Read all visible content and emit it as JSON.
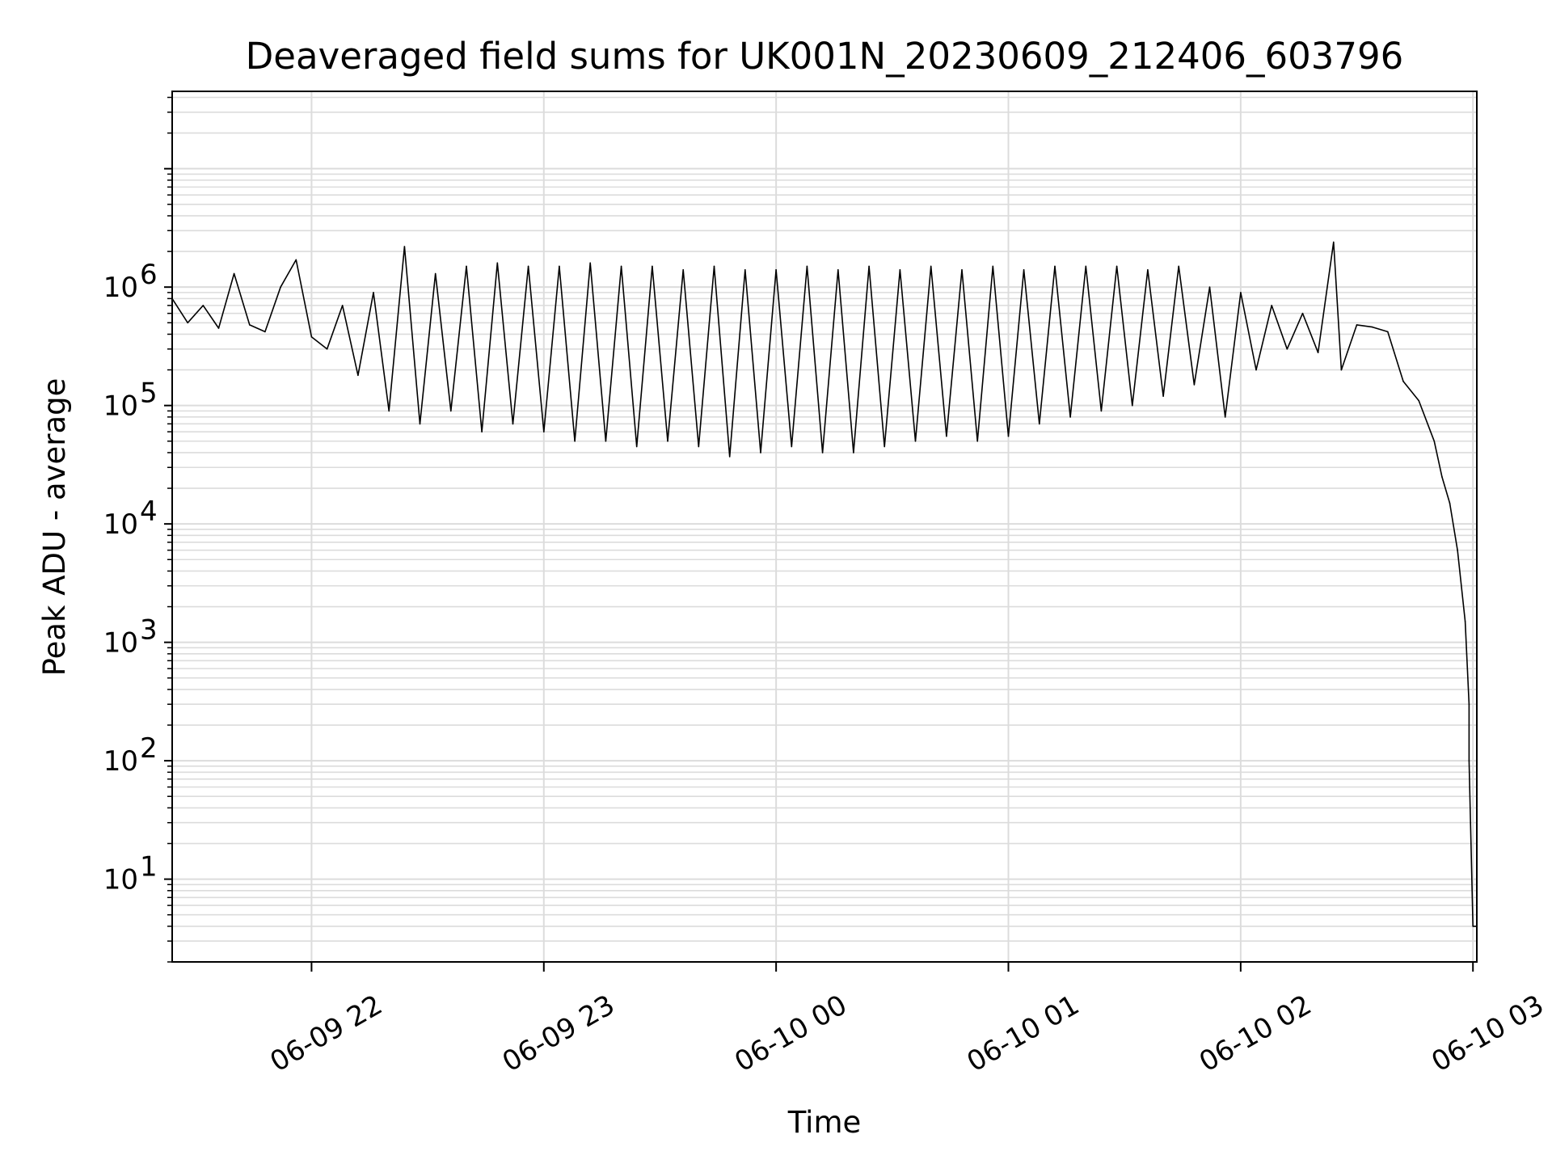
{
  "chart_data": {
    "type": "line",
    "title": "Deaveraged field sums for UK001N_20230609_212406_603796",
    "xlabel": "Time",
    "ylabel": "Peak ADU - average",
    "yscale": "log",
    "ylim": [
      2,
      45000000
    ],
    "xlim": [
      "2023-06-09 21:24",
      "2023-06-10 03:01"
    ],
    "grid": true,
    "x_ticks": [
      {
        "time": "2023-06-09 22:00",
        "label": "06-09 22"
      },
      {
        "time": "2023-06-09 23:00",
        "label": "06-09 23"
      },
      {
        "time": "2023-06-10 00:00",
        "label": "06-10 00"
      },
      {
        "time": "2023-06-10 01:00",
        "label": "06-10 01"
      },
      {
        "time": "2023-06-10 02:00",
        "label": "06-10 02"
      },
      {
        "time": "2023-06-10 03:00",
        "label": "06-10 03"
      }
    ],
    "y_ticks": [
      {
        "value": 10,
        "base": "10",
        "exp": "1"
      },
      {
        "value": 100,
        "base": "10",
        "exp": "2"
      },
      {
        "value": 1000,
        "base": "10",
        "exp": "3"
      },
      {
        "value": 10000,
        "base": "10",
        "exp": "4"
      },
      {
        "value": 100000,
        "base": "10",
        "exp": "5"
      },
      {
        "value": 1000000,
        "base": "10",
        "exp": "6"
      }
    ],
    "series": [
      {
        "color": "#000000",
        "points": [
          [
            "2023-06-09 21:24",
            800000
          ],
          [
            "2023-06-09 21:28",
            500000
          ],
          [
            "2023-06-09 21:32",
            700000
          ],
          [
            "2023-06-09 21:36",
            450000
          ],
          [
            "2023-06-09 21:40",
            1300000
          ],
          [
            "2023-06-09 21:44",
            480000
          ],
          [
            "2023-06-09 21:48",
            420000
          ],
          [
            "2023-06-09 21:52",
            1000000
          ],
          [
            "2023-06-09 21:56",
            1700000
          ],
          [
            "2023-06-09 22:00",
            380000
          ],
          [
            "2023-06-09 22:04",
            300000
          ],
          [
            "2023-06-09 22:08",
            700000
          ],
          [
            "2023-06-09 22:12",
            180000
          ],
          [
            "2023-06-09 22:16",
            900000
          ],
          [
            "2023-06-09 22:20",
            90000
          ],
          [
            "2023-06-09 22:24",
            2200000
          ],
          [
            "2023-06-09 22:28",
            70000
          ],
          [
            "2023-06-09 22:32",
            1300000
          ],
          [
            "2023-06-09 22:36",
            90000
          ],
          [
            "2023-06-09 22:40",
            1500000
          ],
          [
            "2023-06-09 22:44",
            60000
          ],
          [
            "2023-06-09 22:48",
            1600000
          ],
          [
            "2023-06-09 22:52",
            70000
          ],
          [
            "2023-06-09 22:56",
            1500000
          ],
          [
            "2023-06-09 23:00",
            60000
          ],
          [
            "2023-06-09 23:04",
            1500000
          ],
          [
            "2023-06-09 23:08",
            50000
          ],
          [
            "2023-06-09 23:12",
            1600000
          ],
          [
            "2023-06-09 23:16",
            50000
          ],
          [
            "2023-06-09 23:20",
            1500000
          ],
          [
            "2023-06-09 23:24",
            45000
          ],
          [
            "2023-06-09 23:28",
            1500000
          ],
          [
            "2023-06-09 23:32",
            50000
          ],
          [
            "2023-06-09 23:36",
            1400000
          ],
          [
            "2023-06-09 23:40",
            45000
          ],
          [
            "2023-06-09 23:44",
            1500000
          ],
          [
            "2023-06-09 23:48",
            37000
          ],
          [
            "2023-06-09 23:52",
            1400000
          ],
          [
            "2023-06-09 23:56",
            40000
          ],
          [
            "2023-06-10 00:00",
            1400000
          ],
          [
            "2023-06-10 00:04",
            45000
          ],
          [
            "2023-06-10 00:08",
            1500000
          ],
          [
            "2023-06-10 00:12",
            40000
          ],
          [
            "2023-06-10 00:16",
            1400000
          ],
          [
            "2023-06-10 00:20",
            40000
          ],
          [
            "2023-06-10 00:24",
            1500000
          ],
          [
            "2023-06-10 00:28",
            45000
          ],
          [
            "2023-06-10 00:32",
            1400000
          ],
          [
            "2023-06-10 00:36",
            50000
          ],
          [
            "2023-06-10 00:40",
            1500000
          ],
          [
            "2023-06-10 00:44",
            55000
          ],
          [
            "2023-06-10 00:48",
            1400000
          ],
          [
            "2023-06-10 00:52",
            50000
          ],
          [
            "2023-06-10 00:56",
            1500000
          ],
          [
            "2023-06-10 01:00",
            55000
          ],
          [
            "2023-06-10 01:04",
            1400000
          ],
          [
            "2023-06-10 01:08",
            70000
          ],
          [
            "2023-06-10 01:12",
            1500000
          ],
          [
            "2023-06-10 01:16",
            80000
          ],
          [
            "2023-06-10 01:20",
            1500000
          ],
          [
            "2023-06-10 01:24",
            90000
          ],
          [
            "2023-06-10 01:28",
            1500000
          ],
          [
            "2023-06-10 01:32",
            100000
          ],
          [
            "2023-06-10 01:36",
            1400000
          ],
          [
            "2023-06-10 01:40",
            120000
          ],
          [
            "2023-06-10 01:44",
            1500000
          ],
          [
            "2023-06-10 01:48",
            150000
          ],
          [
            "2023-06-10 01:52",
            1000000
          ],
          [
            "2023-06-10 01:56",
            80000
          ],
          [
            "2023-06-10 02:00",
            900000
          ],
          [
            "2023-06-10 02:04",
            200000
          ],
          [
            "2023-06-10 02:08",
            700000
          ],
          [
            "2023-06-10 02:12",
            300000
          ],
          [
            "2023-06-10 02:16",
            600000
          ],
          [
            "2023-06-10 02:20",
            280000
          ],
          [
            "2023-06-10 02:24",
            2400000
          ],
          [
            "2023-06-10 02:26",
            200000
          ],
          [
            "2023-06-10 02:30",
            480000
          ],
          [
            "2023-06-10 02:34",
            460000
          ],
          [
            "2023-06-10 02:38",
            420000
          ],
          [
            "2023-06-10 02:42",
            160000
          ],
          [
            "2023-06-10 02:46",
            110000
          ],
          [
            "2023-06-10 02:50",
            50000
          ],
          [
            "2023-06-10 02:52",
            25000
          ],
          [
            "2023-06-10 02:54",
            15000
          ],
          [
            "2023-06-10 02:56",
            6000
          ],
          [
            "2023-06-10 02:58",
            1500
          ],
          [
            "2023-06-10 02:59",
            300
          ],
          [
            "2023-06-10 02:59",
            100
          ],
          [
            "2023-06-10 03:00",
            4
          ],
          [
            "2023-06-10 03:01",
            4
          ]
        ]
      }
    ]
  }
}
